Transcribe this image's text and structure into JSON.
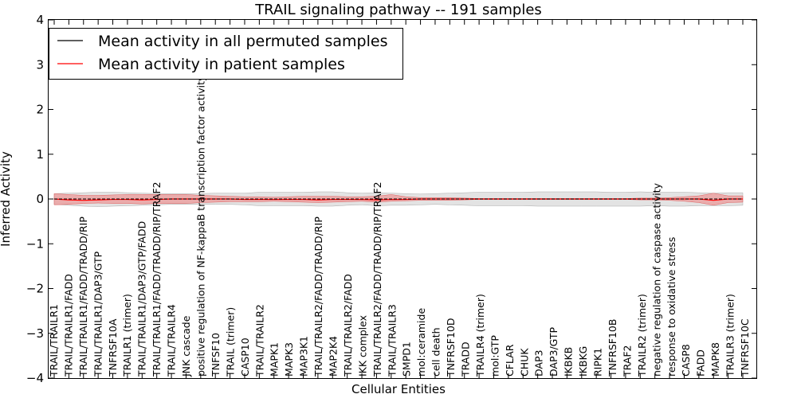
{
  "chart_data": {
    "type": "line",
    "title": "TRAIL signaling pathway -- 191 samples",
    "xlabel": "Cellular Entities",
    "ylabel": "Inferred Activity",
    "ylim": [
      -4,
      4
    ],
    "yticks": [
      -4,
      -3,
      -2,
      -1,
      0,
      1,
      2,
      3,
      4
    ],
    "ytick_labels": [
      "−4",
      "−3",
      "−2",
      "−1",
      "0",
      "1",
      "2",
      "3",
      "4"
    ],
    "legend_position": "top-left",
    "colors": {
      "permuted": "#000000",
      "patient": "#ff0000",
      "patient_band": "#f08080",
      "permuted_band": "#c8c8c8"
    },
    "categories": [
      "TRAIL/TRAILR1",
      "TRAIL/TRAILR1/FADD",
      "TRAIL/TRAILR1/FADD/TRADD/RIP",
      "TRAIL/TRAILR1/DAP3/GTP",
      "TNFRSF10A",
      "TRAILR1 (trimer)",
      "TRAIL/TRAILR1/DAP3/GTP/FADD",
      "TRAIL/TRAILR1/FADD/TRADD/RIP/TRAF2",
      "TRAIL/TRAILR4",
      "JNK cascade",
      "positive regulation of NF-kappaB transcription factor activity",
      "TNFSF10",
      "TRAIL (trimer)",
      "CASP10",
      "TRAIL/TRAILR2",
      "MAPK1",
      "MAPK3",
      "MAP3K1",
      "TRAIL/TRAILR2/FADD/TRADD/RIP",
      "MAP2K4",
      "TRAIL/TRAILR2/FADD",
      "IKK complex",
      "TRAIL/TRAILR2/FADD/TRADD/RIP/TRAF2",
      "TRAIL/TRAILR3",
      "SMPD1",
      "mol:ceramide",
      "cell death",
      "TNFRSF10D",
      "TRADD",
      "TRAILR4 (trimer)",
      "mol:GTP",
      "CFLAR",
      "CHUK",
      "DAP3",
      "DAP3/GTP",
      "IKBKB",
      "IKBKG",
      "RIPK1",
      "TNFRSF10B",
      "TRAF2",
      "TRAILR2 (trimer)",
      "negative regulation of caspase activity",
      "response to oxidative stress",
      "CASP8",
      "FADD",
      "MAPK8",
      "TRAILR3 (trimer)",
      "TNFRSF10C"
    ],
    "series": [
      {
        "name": "Mean activity in all permuted samples",
        "values": [
          0.0,
          0.0,
          0.0,
          0.0,
          0.0,
          0.0,
          0.0,
          0.0,
          0.0,
          0.0,
          0.0,
          0.0,
          0.0,
          0.0,
          0.0,
          0.0,
          0.0,
          0.0,
          0.0,
          0.0,
          0.0,
          0.0,
          0.0,
          0.0,
          0.0,
          0.0,
          0.0,
          0.0,
          0.0,
          0.0,
          0.0,
          0.0,
          0.0,
          0.0,
          0.0,
          0.0,
          0.0,
          0.0,
          0.0,
          0.0,
          0.0,
          0.0,
          0.0,
          0.0,
          0.0,
          0.0,
          0.0,
          0.0
        ],
        "band_lower": [
          -0.12,
          -0.14,
          -0.16,
          -0.17,
          -0.16,
          -0.15,
          -0.14,
          -0.13,
          -0.12,
          -0.12,
          -0.12,
          -0.12,
          -0.12,
          -0.13,
          -0.15,
          -0.15,
          -0.15,
          -0.15,
          -0.16,
          -0.16,
          -0.14,
          -0.13,
          -0.15,
          -0.14,
          -0.14,
          -0.13,
          -0.12,
          -0.13,
          -0.14,
          -0.15,
          -0.15,
          -0.15,
          -0.15,
          -0.16,
          -0.16,
          -0.16,
          -0.16,
          -0.16,
          -0.16,
          -0.16,
          -0.16,
          -0.15,
          -0.16,
          -0.16,
          -0.15,
          -0.15,
          -0.15,
          -0.14
        ],
        "band_upper": [
          0.12,
          0.13,
          0.14,
          0.15,
          0.15,
          0.14,
          0.13,
          0.12,
          0.12,
          0.12,
          0.12,
          0.13,
          0.13,
          0.13,
          0.15,
          0.15,
          0.15,
          0.15,
          0.16,
          0.16,
          0.14,
          0.13,
          0.14,
          0.13,
          0.12,
          0.11,
          0.12,
          0.13,
          0.14,
          0.15,
          0.15,
          0.15,
          0.15,
          0.16,
          0.16,
          0.16,
          0.16,
          0.16,
          0.15,
          0.15,
          0.16,
          0.15,
          0.15,
          0.15,
          0.14,
          0.13,
          0.14,
          0.14
        ]
      },
      {
        "name": "Mean activity in patient samples",
        "values": [
          0.0,
          -0.02,
          -0.03,
          -0.02,
          -0.01,
          -0.01,
          -0.02,
          -0.01,
          0.0,
          0.0,
          0.0,
          0.0,
          0.0,
          -0.01,
          -0.01,
          -0.01,
          -0.01,
          -0.01,
          -0.02,
          -0.01,
          -0.01,
          -0.01,
          -0.02,
          -0.01,
          -0.01,
          0.0,
          0.0,
          0.0,
          0.0,
          0.0,
          0.0,
          0.0,
          0.0,
          0.0,
          0.0,
          0.0,
          0.0,
          0.0,
          0.0,
          0.0,
          0.0,
          0.0,
          0.0,
          0.0,
          0.0,
          -0.03,
          0.0,
          0.0
        ],
        "band_lower": [
          -0.13,
          -0.12,
          -0.1,
          -0.09,
          -0.1,
          -0.1,
          -0.11,
          -0.1,
          -0.1,
          -0.1,
          -0.08,
          -0.07,
          -0.06,
          -0.06,
          -0.06,
          -0.05,
          -0.06,
          -0.07,
          -0.08,
          -0.07,
          -0.06,
          -0.05,
          -0.07,
          -0.05,
          -0.04,
          -0.03,
          -0.03,
          -0.03,
          -0.02,
          -0.01,
          -0.01,
          -0.01,
          -0.01,
          -0.01,
          -0.01,
          -0.01,
          -0.01,
          -0.01,
          -0.01,
          -0.01,
          -0.02,
          -0.02,
          -0.03,
          -0.05,
          -0.08,
          -0.14,
          -0.08,
          -0.07
        ],
        "band_upper": [
          0.12,
          0.1,
          0.08,
          0.08,
          0.09,
          0.1,
          0.1,
          0.1,
          0.1,
          0.1,
          0.08,
          0.07,
          0.06,
          0.05,
          0.05,
          0.04,
          0.05,
          0.06,
          0.06,
          0.06,
          0.05,
          0.05,
          0.06,
          0.1,
          0.05,
          0.03,
          0.03,
          0.03,
          0.02,
          0.01,
          0.01,
          0.01,
          0.01,
          0.01,
          0.01,
          0.01,
          0.01,
          0.01,
          0.01,
          0.01,
          0.02,
          0.02,
          0.03,
          0.05,
          0.07,
          0.13,
          0.07,
          0.07
        ]
      }
    ]
  }
}
